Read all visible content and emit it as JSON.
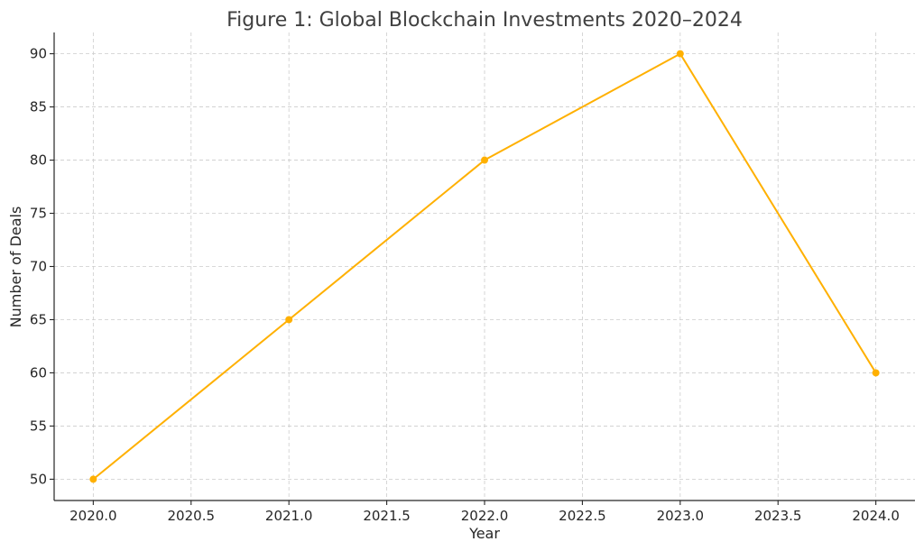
{
  "chart_data": {
    "type": "line",
    "title": "Figure 1: Global Blockchain Investments 2020–2024",
    "xlabel": "Year",
    "ylabel": "Number of Deals",
    "x": [
      2020,
      2021,
      2022,
      2023,
      2024
    ],
    "series": [
      {
        "values": [
          50,
          65,
          80,
          90,
          60
        ]
      }
    ],
    "xticks": [
      "2020.0",
      "2020.5",
      "2021.0",
      "2021.5",
      "2022.0",
      "2022.5",
      "2023.0",
      "2023.5",
      "2024.0"
    ],
    "yticks": [
      "50",
      "55",
      "60",
      "65",
      "70",
      "75",
      "80",
      "85",
      "90"
    ],
    "xlim": [
      2019.8,
      2024.2
    ],
    "ylim": [
      48,
      92
    ],
    "grid": true,
    "colors": {
      "line": "#FFB000",
      "grid": "#cccccc",
      "text": "#262626"
    }
  }
}
